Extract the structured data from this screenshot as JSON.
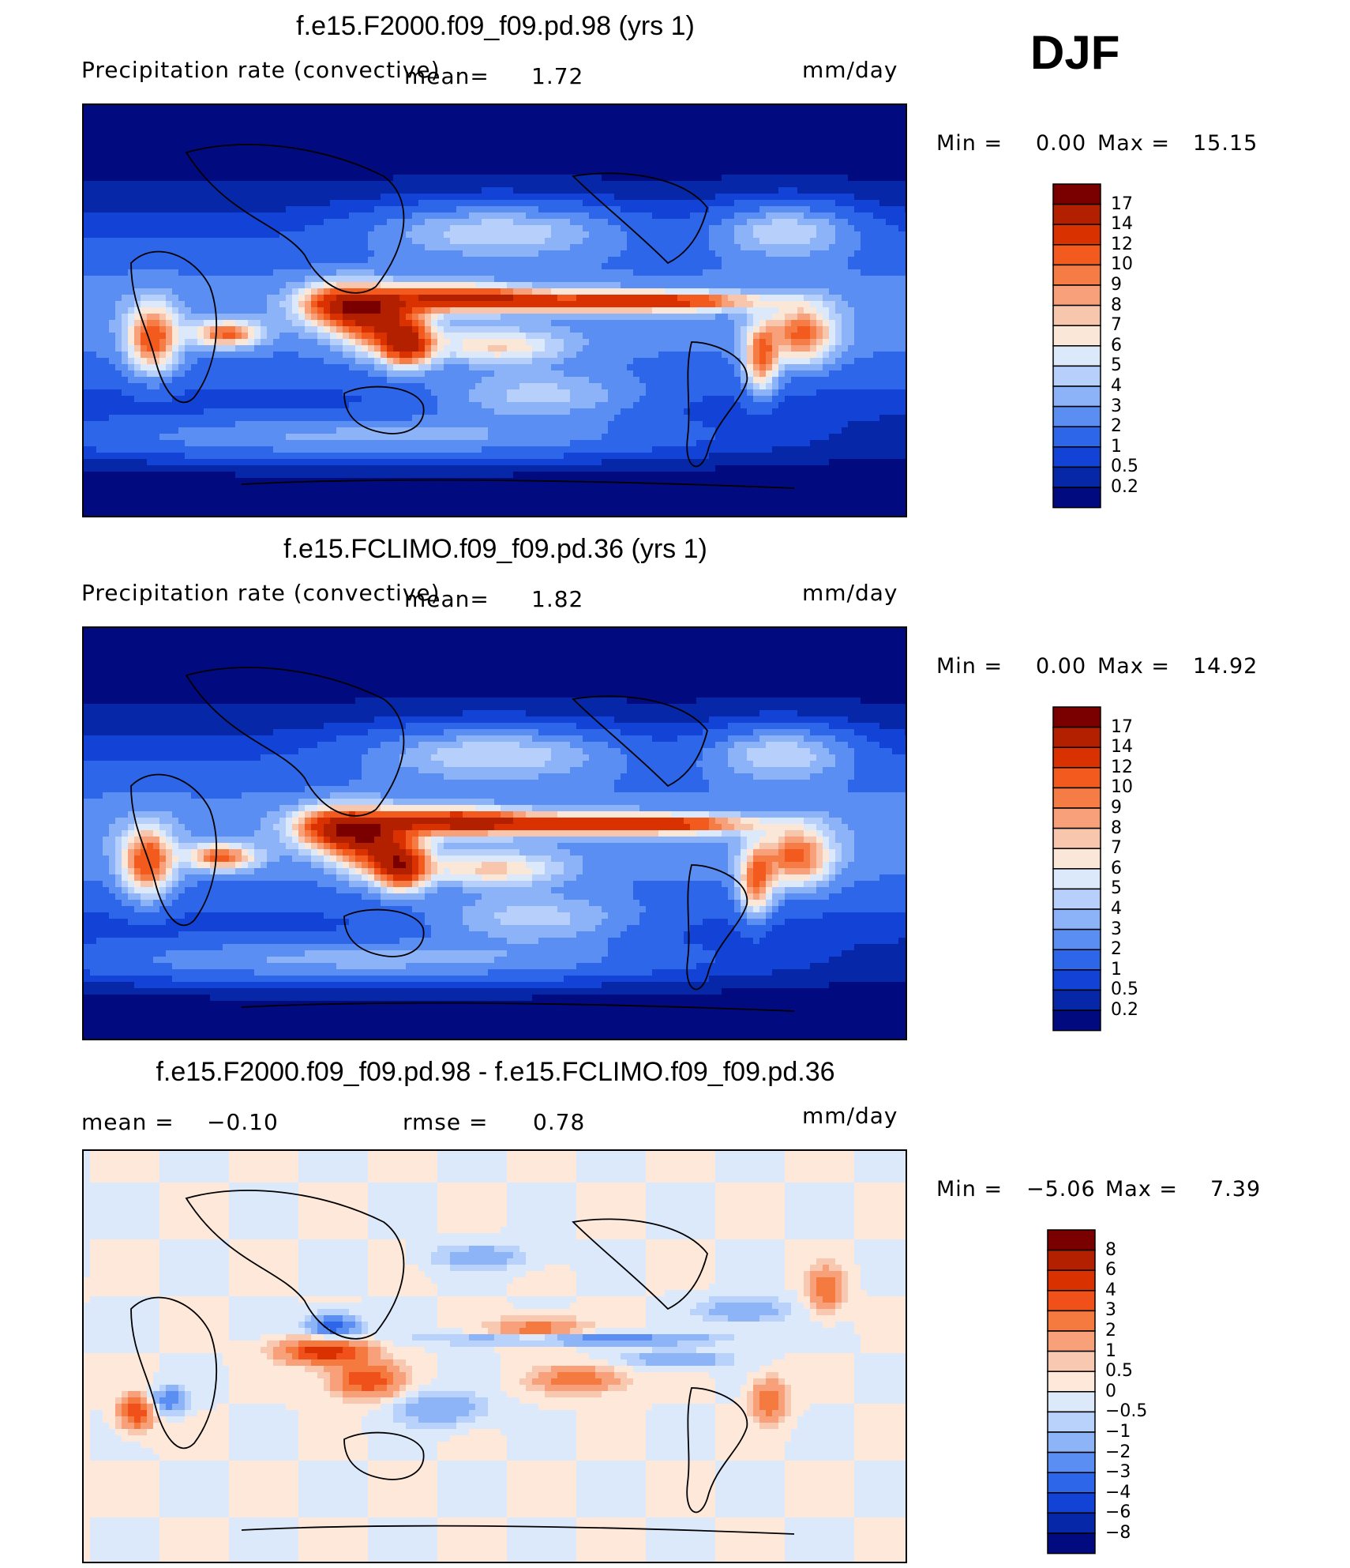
{
  "season": "DJF",
  "panels": [
    {
      "title": "f.e15.F2000.f09_f09.pd.98 (yrs 1)",
      "variable": "Precipitation rate (convective)",
      "mean_label": "mean=",
      "mean_value": "1.72",
      "units": "mm/day",
      "min_label": "Min =",
      "min_value": "0.00",
      "max_label": "Max =",
      "max_value": "15.15",
      "colorbar": {
        "labels": [
          "17",
          "14",
          "12",
          "10",
          "9",
          "8",
          "7",
          "6",
          "5",
          "4",
          "3",
          "2",
          "1",
          "0.5",
          "0.2"
        ],
        "colors": [
          "#7a0000",
          "#b32000",
          "#d93200",
          "#f25a1e",
          "#f57d45",
          "#f7a07a",
          "#f8c6ad",
          "#fbe7d8",
          "#dbe9fb",
          "#b6d0fb",
          "#8cb2f8",
          "#5a8ef2",
          "#2e66ea",
          "#1242d6",
          "#0628a8",
          "#020a80"
        ]
      },
      "map_palette": "precip"
    },
    {
      "title": "f.e15.FCLIMO.f09_f09.pd.36 (yrs 1)",
      "variable": "Precipitation rate (convective)",
      "mean_label": "mean=",
      "mean_value": "1.82",
      "units": "mm/day",
      "min_label": "Min =",
      "min_value": "0.00",
      "max_label": "Max =",
      "max_value": "14.92",
      "colorbar": {
        "labels": [
          "17",
          "14",
          "12",
          "10",
          "9",
          "8",
          "7",
          "6",
          "5",
          "4",
          "3",
          "2",
          "1",
          "0.5",
          "0.2"
        ],
        "colors": [
          "#7a0000",
          "#b32000",
          "#d93200",
          "#f25a1e",
          "#f57d45",
          "#f7a07a",
          "#f8c6ad",
          "#fbe7d8",
          "#dbe9fb",
          "#b6d0fb",
          "#8cb2f8",
          "#5a8ef2",
          "#2e66ea",
          "#1242d6",
          "#0628a8",
          "#020a80"
        ]
      },
      "map_palette": "precip"
    },
    {
      "title": "f.e15.F2000.f09_f09.pd.98 - f.e15.FCLIMO.f09_f09.pd.36",
      "mean_label": "mean =",
      "mean_value": "−0.10",
      "rmse_label": "rmse =",
      "rmse_value": "0.78",
      "units": "mm/day",
      "min_label": "Min =",
      "min_value": "−5.06",
      "max_label": "Max =",
      "max_value": "7.39",
      "colorbar": {
        "labels": [
          "8",
          "6",
          "4",
          "3",
          "2",
          "1",
          "0.5",
          "0",
          "−0.5",
          "−1",
          "−2",
          "−3",
          "−4",
          "−6",
          "−8"
        ],
        "colors": [
          "#7a0000",
          "#b32000",
          "#d93200",
          "#f0501a",
          "#f47a40",
          "#f7a07a",
          "#f9c8b0",
          "#fde8da",
          "#dbe9fb",
          "#b8d2fb",
          "#8eb4f8",
          "#5a8ef2",
          "#2e66ea",
          "#1242d6",
          "#0628a8",
          "#020a80"
        ]
      },
      "map_palette": "diff"
    }
  ]
}
